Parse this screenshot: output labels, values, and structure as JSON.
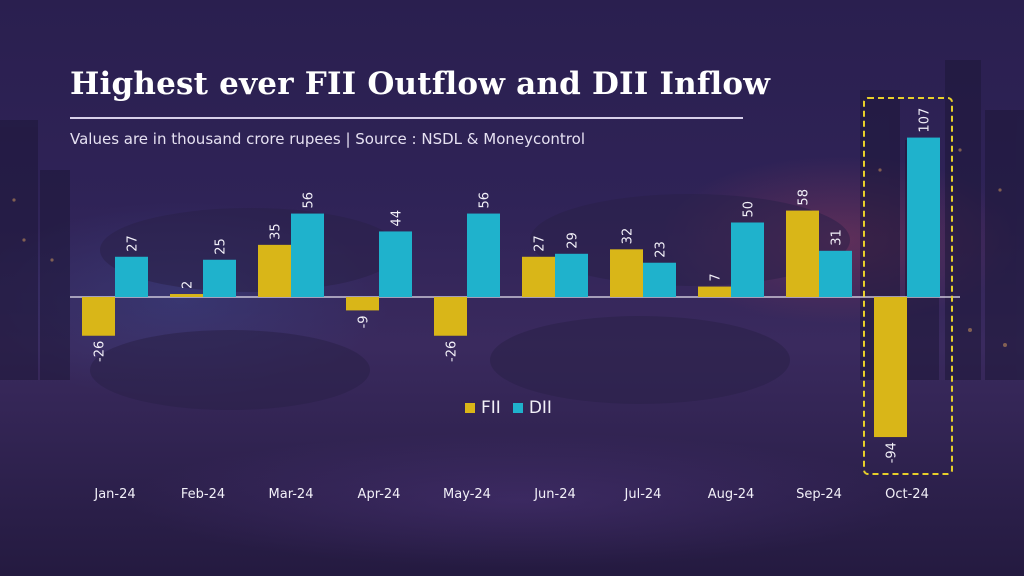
{
  "header": {
    "title": "Highest ever FII Outflow and DII Inflow",
    "subtitle": "Values are in thousand crore rupees | Source : NSDL & Moneycontrol"
  },
  "colors": {
    "fii": "#d9b618",
    "dii": "#1fb2cc",
    "highlight": "#e6cf2a",
    "text": "#f2f0f8"
  },
  "chart_data": {
    "type": "bar",
    "categories": [
      "Jan-24",
      "Feb-24",
      "Mar-24",
      "Apr-24",
      "May-24",
      "Jun-24",
      "Jul-24",
      "Aug-24",
      "Sep-24",
      "Oct-24"
    ],
    "series": [
      {
        "name": "FII",
        "values": [
          -26,
          2,
          35,
          -9,
          -26,
          27,
          32,
          7,
          58,
          -94
        ]
      },
      {
        "name": "DII",
        "values": [
          27,
          25,
          56,
          44,
          56,
          29,
          23,
          50,
          31,
          107
        ]
      }
    ],
    "value_labels": {
      "FII": [
        "-26",
        "2",
        "35",
        "-9",
        "-26",
        "27",
        "32",
        "7",
        "58",
        "-94"
      ],
      "DII": [
        "27",
        "25",
        "56",
        "44",
        "56",
        "29",
        "23",
        "50",
        "31",
        "107"
      ]
    },
    "ylim": [
      -100,
      110
    ],
    "highlight_category": "Oct-24",
    "legend": {
      "position": "bottom-center",
      "entries": [
        "FII",
        "DII"
      ]
    },
    "grid": false
  }
}
